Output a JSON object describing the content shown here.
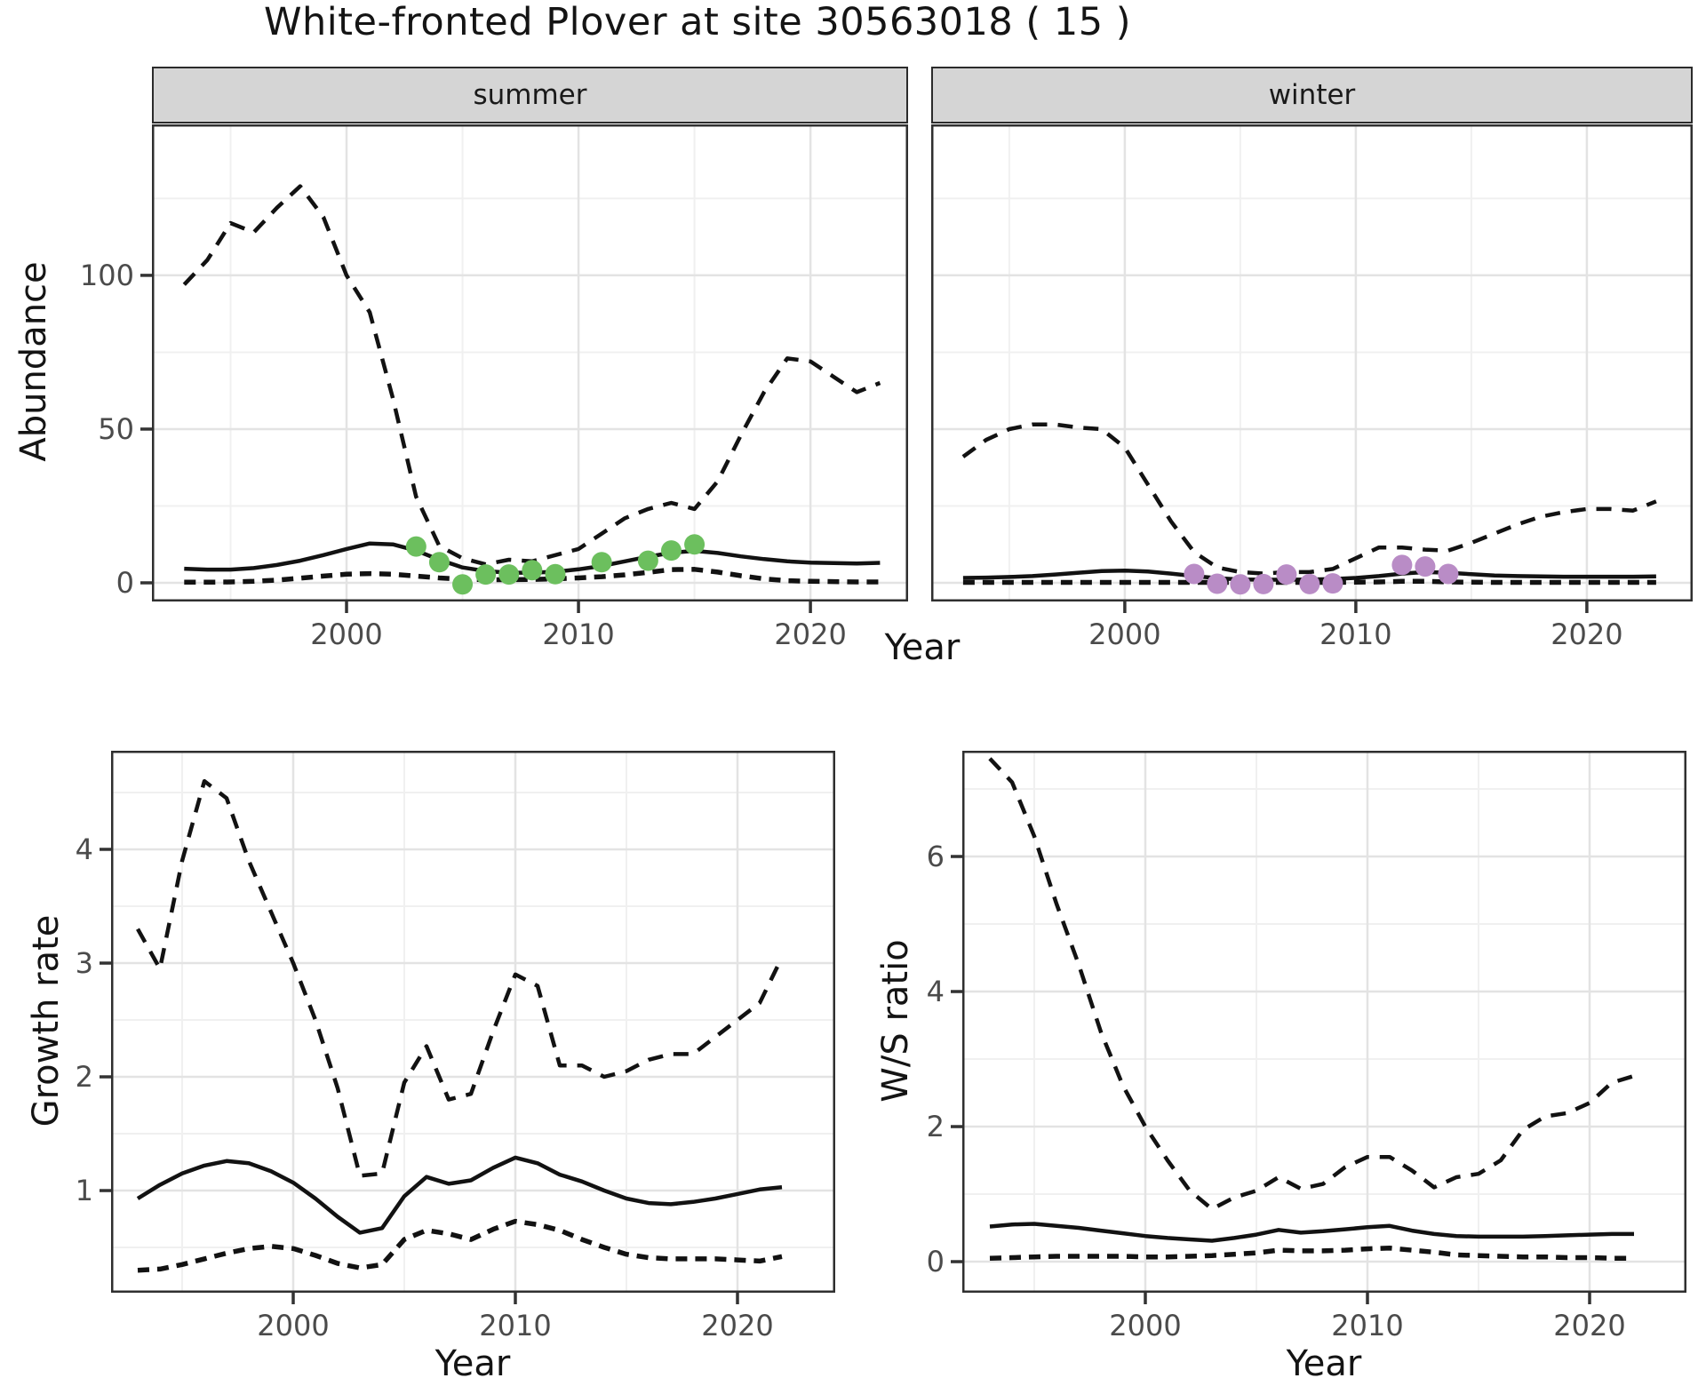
{
  "page": {
    "title": "White-fronted Plover at site 30563018 ( 15 )"
  },
  "axis_titles": {
    "abundance": "Abundance",
    "year_top": "Year",
    "growth": "Growth rate",
    "ws": "W/S ratio",
    "year_growth": "Year",
    "year_ws": "Year"
  },
  "colors": {
    "summer_point": "#6CBF5E",
    "winter_point": "#B98CC6",
    "line": "#121212",
    "strip_bg": "#D5D5D5",
    "grid_major": "#E3E3E3",
    "grid_minor": "#F0F0F0",
    "panel_border": "#2f2f2f",
    "tick_mark": "#333333",
    "tick_text": "#4b4b4b"
  },
  "chart_data": [
    {
      "name": "abundance-summer",
      "type": "line",
      "facet_label": "summer",
      "title": "",
      "xlabel": "Year",
      "ylabel": "Abundance",
      "x": [
        1993,
        1994,
        1995,
        1996,
        1997,
        1998,
        1999,
        2000,
        2001,
        2002,
        2003,
        2004,
        2005,
        2006,
        2007,
        2008,
        2009,
        2010,
        2011,
        2012,
        2013,
        2014,
        2015,
        2016,
        2017,
        2018,
        2019,
        2020,
        2021,
        2022,
        2023
      ],
      "series": [
        {
          "name": "upper_ci",
          "style": "dashed",
          "values": [
            97,
            105,
            117,
            114,
            122,
            129,
            119,
            100,
            88,
            60,
            28,
            12,
            8,
            6,
            7.5,
            7,
            9,
            11,
            16,
            21,
            24,
            26,
            24,
            33,
            48,
            62,
            73,
            72,
            67,
            62,
            65
          ]
        },
        {
          "name": "mean",
          "style": "solid",
          "values": [
            4.6,
            4.3,
            4.3,
            4.8,
            5.8,
            7.2,
            9,
            11,
            12.8,
            12.5,
            10.5,
            7.5,
            5,
            3.8,
            3.3,
            3.3,
            3.6,
            4.4,
            5.5,
            7,
            8.5,
            9.8,
            10.4,
            9.7,
            8.6,
            7.7,
            7,
            6.6,
            6.4,
            6.3,
            6.5
          ]
        },
        {
          "name": "lower_ci",
          "style": "dashed-dense",
          "values": [
            0.2,
            0.2,
            0.3,
            0.5,
            0.9,
            1.5,
            2.2,
            2.8,
            3,
            2.8,
            2.2,
            1.6,
            1.2,
            1,
            1,
            1.1,
            1.3,
            1.6,
            2,
            2.6,
            3.4,
            4.3,
            4.4,
            3.5,
            2.3,
            1.3,
            0.7,
            0.5,
            0.4,
            0.3,
            0.3
          ]
        }
      ],
      "points": {
        "name": "observed-counts",
        "color_key": "summer_point",
        "x": [
          2003,
          2004,
          2005,
          2006,
          2007,
          2008,
          2009,
          2011,
          2013,
          2014,
          2015
        ],
        "y": [
          11.8,
          6.7,
          -0.5,
          2.7,
          2.7,
          4.1,
          2.8,
          6.7,
          7.2,
          10.5,
          12.5
        ]
      },
      "xlim": [
        1991.61,
        2024.21
      ],
      "ylim": [
        -6.07,
        149.1
      ],
      "x_ticks": {
        "major": [
          2000,
          2010,
          2020
        ],
        "minor": [
          1995,
          2005,
          2015
        ],
        "labels": [
          "2000",
          "2010",
          "2020"
        ]
      },
      "y_ticks": {
        "major": [
          0,
          50,
          100
        ],
        "minor": [
          25,
          75,
          125
        ],
        "labels": [
          "0",
          "50",
          "100"
        ]
      },
      "grid": true,
      "legend": "none"
    },
    {
      "name": "abundance-winter",
      "type": "line",
      "facet_label": "winter",
      "title": "",
      "xlabel": "Year",
      "ylabel": "",
      "x": [
        1993,
        1994,
        1995,
        1996,
        1997,
        1998,
        1999,
        2000,
        2001,
        2002,
        2003,
        2004,
        2005,
        2006,
        2007,
        2008,
        2009,
        2010,
        2011,
        2012,
        2013,
        2014,
        2015,
        2016,
        2017,
        2018,
        2019,
        2020,
        2021,
        2022,
        2023
      ],
      "series": [
        {
          "name": "upper_ci",
          "style": "dashed",
          "values": [
            41,
            46.5,
            50,
            51.5,
            51.5,
            50.5,
            50,
            44,
            32,
            20,
            10,
            5,
            3.5,
            3,
            3.5,
            3.5,
            4.5,
            8,
            11.5,
            11.5,
            10.8,
            10.5,
            13,
            16,
            19,
            21.5,
            23,
            24,
            24,
            23.5,
            26.5
          ]
        },
        {
          "name": "mean",
          "style": "solid",
          "values": [
            1.6,
            1.7,
            1.9,
            2.2,
            2.7,
            3.3,
            3.8,
            4,
            3.7,
            3,
            2.2,
            1.5,
            1.1,
            1,
            1,
            1.1,
            1.2,
            1.6,
            2.2,
            3,
            3.5,
            3.3,
            2.8,
            2.4,
            2.2,
            2.1,
            2,
            2,
            2,
            2,
            2.1
          ]
        },
        {
          "name": "lower_ci",
          "style": "dashed-dense",
          "values": [
            0.15,
            0.15,
            0.15,
            0.15,
            0.15,
            0.15,
            0.15,
            0.15,
            0.15,
            0.15,
            0.15,
            0.15,
            0.15,
            0.15,
            0.15,
            0.15,
            0.15,
            0.2,
            0.3,
            0.5,
            0.5,
            0.3,
            0.2,
            0.15,
            0.15,
            0.15,
            0.15,
            0.15,
            0.15,
            0.15,
            0.15
          ]
        }
      ],
      "points": {
        "name": "observed-counts",
        "color_key": "winter_point",
        "x": [
          2003,
          2004,
          2005,
          2006,
          2007,
          2008,
          2009,
          2012,
          2013,
          2014
        ],
        "y": [
          2.9,
          -0.3,
          -0.5,
          -0.4,
          2.7,
          -0.4,
          -0.2,
          5.8,
          5.3,
          2.9
        ]
      },
      "xlim": [
        1991.62,
        2024.58
      ],
      "ylim": [
        -6.07,
        149.1
      ],
      "x_ticks": {
        "major": [
          2000,
          2010,
          2020
        ],
        "minor": [
          1995,
          2005,
          2015
        ],
        "labels": [
          "2000",
          "2010",
          "2020"
        ]
      },
      "y_ticks": {
        "major": [
          0,
          50,
          100
        ],
        "minor": [
          25,
          75,
          125
        ],
        "labels": null
      },
      "grid": true,
      "legend": "none"
    },
    {
      "name": "growth-rate",
      "type": "line",
      "facet_label": "",
      "title": "",
      "xlabel": "Year",
      "ylabel": "Growth rate",
      "x": [
        1993,
        1994,
        1995,
        1996,
        1997,
        1998,
        1999,
        2000,
        2001,
        2002,
        2003,
        2004,
        2005,
        2006,
        2007,
        2008,
        2009,
        2010,
        2011,
        2012,
        2013,
        2014,
        2015,
        2016,
        2017,
        2018,
        2019,
        2020,
        2021,
        2022
      ],
      "series": [
        {
          "name": "upper_ci",
          "style": "dashed",
          "values": [
            3.3,
            2.95,
            3.9,
            4.6,
            4.45,
            3.9,
            3.45,
            3.0,
            2.5,
            1.9,
            1.13,
            1.15,
            1.95,
            2.27,
            1.8,
            1.85,
            2.4,
            2.9,
            2.8,
            2.1,
            2.1,
            2.0,
            2.05,
            2.15,
            2.2,
            2.2,
            2.35,
            2.5,
            2.65,
            3.05
          ]
        },
        {
          "name": "mean",
          "style": "solid",
          "values": [
            0.93,
            1.05,
            1.15,
            1.22,
            1.26,
            1.24,
            1.17,
            1.07,
            0.93,
            0.77,
            0.63,
            0.67,
            0.95,
            1.12,
            1.06,
            1.09,
            1.2,
            1.29,
            1.24,
            1.14,
            1.08,
            1.0,
            0.93,
            0.89,
            0.88,
            0.9,
            0.93,
            0.97,
            1.01,
            1.03
          ]
        },
        {
          "name": "lower_ci",
          "style": "dashed-dense",
          "values": [
            0.3,
            0.31,
            0.35,
            0.4,
            0.45,
            0.49,
            0.51,
            0.49,
            0.43,
            0.36,
            0.32,
            0.35,
            0.57,
            0.65,
            0.62,
            0.57,
            0.66,
            0.73,
            0.7,
            0.65,
            0.57,
            0.5,
            0.44,
            0.41,
            0.4,
            0.4,
            0.4,
            0.39,
            0.38,
            0.42
          ]
        }
      ],
      "points": null,
      "xlim": [
        1991.8,
        2024.4
      ],
      "ylim": [
        0.102,
        4.867
      ],
      "x_ticks": {
        "major": [
          2000,
          2010,
          2020
        ],
        "minor": [
          1995,
          2005,
          2015
        ],
        "labels": [
          "2000",
          "2010",
          "2020"
        ]
      },
      "y_ticks": {
        "major": [
          1,
          2,
          3,
          4
        ],
        "minor": [
          0.5,
          1.5,
          2.5,
          3.5,
          4.5
        ],
        "labels": [
          "1",
          "2",
          "3",
          "4"
        ]
      },
      "grid": true,
      "legend": "none"
    },
    {
      "name": "ws-ratio",
      "type": "line",
      "facet_label": "",
      "title": "",
      "xlabel": "Year",
      "ylabel": "W/S ratio",
      "x": [
        1993,
        1994,
        1995,
        1996,
        1997,
        1998,
        1999,
        2000,
        2001,
        2002,
        2003,
        2004,
        2005,
        2006,
        2007,
        2008,
        2009,
        2010,
        2011,
        2012,
        2013,
        2014,
        2015,
        2016,
        2017,
        2018,
        2019,
        2020,
        2021,
        2022
      ],
      "series": [
        {
          "name": "upper_ci",
          "style": "dashed",
          "values": [
            7.45,
            7.1,
            6.3,
            5.3,
            4.4,
            3.4,
            2.6,
            2.0,
            1.5,
            1.05,
            0.78,
            0.95,
            1.05,
            1.25,
            1.08,
            1.15,
            1.4,
            1.55,
            1.55,
            1.35,
            1.1,
            1.25,
            1.3,
            1.5,
            1.95,
            2.15,
            2.2,
            2.35,
            2.65,
            2.75
          ]
        },
        {
          "name": "mean",
          "style": "solid",
          "values": [
            0.52,
            0.55,
            0.56,
            0.53,
            0.5,
            0.46,
            0.42,
            0.38,
            0.35,
            0.33,
            0.31,
            0.35,
            0.4,
            0.47,
            0.43,
            0.45,
            0.48,
            0.51,
            0.53,
            0.46,
            0.41,
            0.38,
            0.37,
            0.37,
            0.37,
            0.38,
            0.39,
            0.4,
            0.41,
            0.41
          ]
        },
        {
          "name": "lower_ci",
          "style": "dashed-dense",
          "values": [
            0.05,
            0.06,
            0.07,
            0.08,
            0.08,
            0.08,
            0.08,
            0.07,
            0.07,
            0.08,
            0.09,
            0.11,
            0.13,
            0.17,
            0.16,
            0.16,
            0.17,
            0.19,
            0.2,
            0.17,
            0.14,
            0.1,
            0.09,
            0.08,
            0.07,
            0.07,
            0.06,
            0.06,
            0.05,
            0.05
          ]
        }
      ],
      "points": null,
      "xlim": [
        1991.76,
        2024.36
      ],
      "ylim": [
        -0.46,
        7.566
      ],
      "x_ticks": {
        "major": [
          2000,
          2010,
          2020
        ],
        "minor": [
          1995,
          2005,
          2015
        ],
        "labels": [
          "2000",
          "2010",
          "2020"
        ]
      },
      "y_ticks": {
        "major": [
          0,
          2,
          4,
          6
        ],
        "minor": [
          1,
          3,
          5,
          7
        ],
        "labels": [
          "0",
          "2",
          "4",
          "6"
        ]
      },
      "grid": true,
      "legend": "none"
    }
  ]
}
